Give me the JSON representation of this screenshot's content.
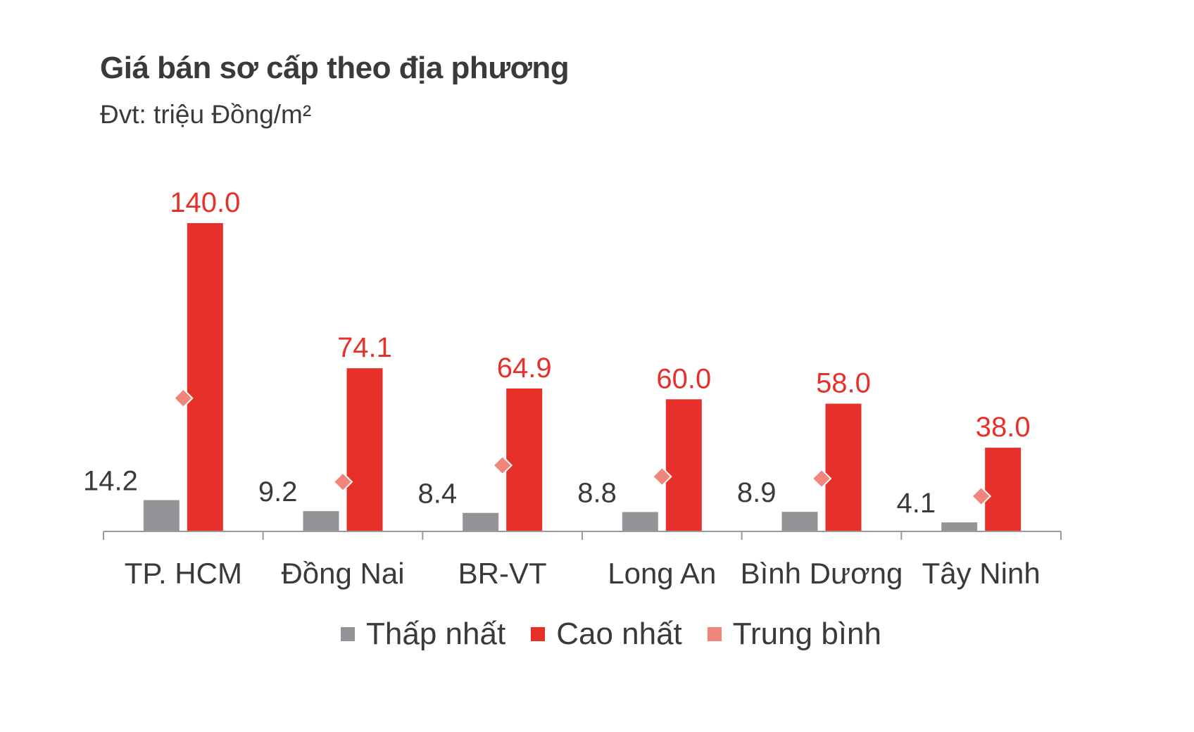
{
  "chart_data": {
    "type": "bar",
    "title": "Giá bán sơ cấp theo địa phương",
    "subtitle": "Đvt: triệu Đồng/m²",
    "categories": [
      "TP. HCM",
      "Đồng Nai",
      "BR-VT",
      "Long An",
      "Bình Dương",
      "Tây Ninh"
    ],
    "series": [
      {
        "name": "Thấp nhất",
        "type": "bar",
        "color": "#939398",
        "values": [
          14.2,
          9.2,
          8.4,
          8.8,
          8.9,
          4.1
        ],
        "labels": [
          "14.2",
          "9.2",
          "8.4",
          "8.8",
          "8.9",
          "4.1"
        ]
      },
      {
        "name": "Cao nhất",
        "type": "bar",
        "color": "#e8302a",
        "values": [
          140.0,
          74.1,
          64.9,
          60.0,
          58.0,
          38.0
        ],
        "labels": [
          "140.0",
          "74.1",
          "64.9",
          "60.0",
          "58.0",
          "38.0"
        ]
      },
      {
        "name": "Trung bình",
        "type": "marker",
        "color": "#f0857c",
        "values": [
          60.5,
          22.5,
          30.0,
          24.9,
          24.0,
          16.0
        ]
      }
    ],
    "ylim": [
      0,
      140
    ],
    "grid": false,
    "legend_position": "bottom"
  }
}
